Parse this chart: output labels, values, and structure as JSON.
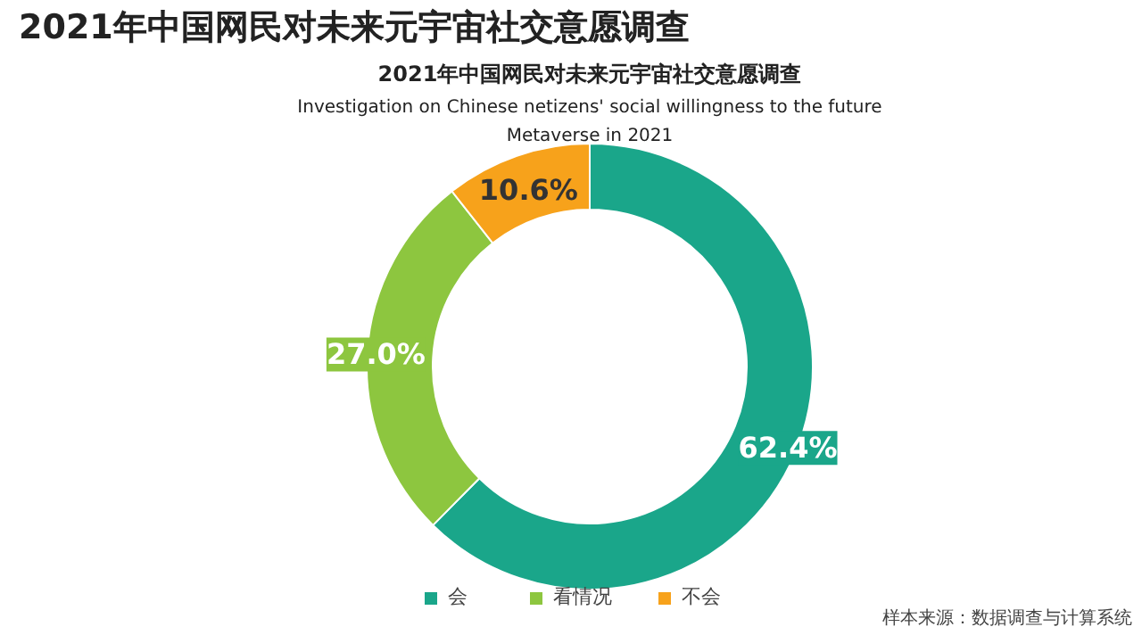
{
  "chart_data": {
    "type": "donut",
    "title": "2021年中国网民对未来元宇宙社交意愿调查",
    "subtitle": "2021年中国网民对未来元宇宙社交意愿调查\nInvestigation on Chinese netizens' social willingness to the future\nMetaverse in 2021",
    "categories": [
      "会",
      "看情况",
      "不会"
    ],
    "values": [
      62.4,
      27.0,
      10.6
    ],
    "colors": [
      "#1aa68a",
      "#8dc63f",
      "#f7a21b"
    ],
    "value_labels": [
      "62.4%",
      "27.0%",
      "10.6%"
    ],
    "legend": "bottom",
    "annotations": [
      "样本来源：数据调查与计算系统"
    ]
  }
}
